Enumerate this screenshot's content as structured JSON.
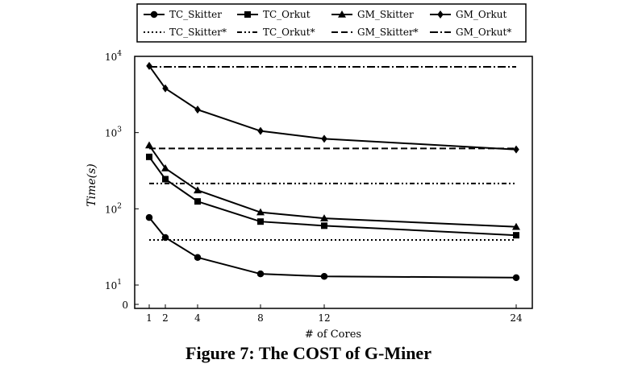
{
  "caption": "Figure 7: The COST of G-Miner",
  "chart_data": {
    "type": "line",
    "xlabel": "# of Cores",
    "ylabel": "Time(s)",
    "yscale": "log",
    "ylim": [
      10,
      10000
    ],
    "x": [
      1,
      2,
      4,
      8,
      12,
      24
    ],
    "xticks": [
      "1",
      "2",
      "4",
      "8",
      "12",
      "24"
    ],
    "yticks": [
      {
        "base": "10",
        "exp": "4"
      },
      {
        "base": "10",
        "exp": "3"
      },
      {
        "base": "10",
        "exp": "2"
      },
      {
        "base": "10",
        "exp": "1"
      },
      {
        "base": "0",
        "exp": ""
      }
    ],
    "grid": false,
    "legend_position": "top",
    "series": [
      {
        "name": "TC_Skitter",
        "marker": "circle",
        "values": [
          77,
          42,
          23,
          14,
          13,
          12.5
        ]
      },
      {
        "name": "TC_Orkut",
        "marker": "square",
        "values": [
          480,
          245,
          125,
          68,
          60,
          45
        ]
      },
      {
        "name": "GM_Skitter",
        "marker": "triangle",
        "values": [
          680,
          340,
          175,
          90,
          75,
          58
        ]
      },
      {
        "name": "GM_Orkut",
        "marker": "diamond",
        "values": [
          7500,
          3800,
          2000,
          1050,
          830,
          600
        ]
      }
    ],
    "reference_lines": [
      {
        "name": "TC_Skitter*",
        "style": "dotted",
        "value": 39
      },
      {
        "name": "TC_Orkut*",
        "style": "dash-dot-dot",
        "value": 215
      },
      {
        "name": "GM_Skitter*",
        "style": "dashed",
        "value": 620
      },
      {
        "name": "GM_Orkut*",
        "style": "dash-dot",
        "value": 7300
      }
    ]
  }
}
